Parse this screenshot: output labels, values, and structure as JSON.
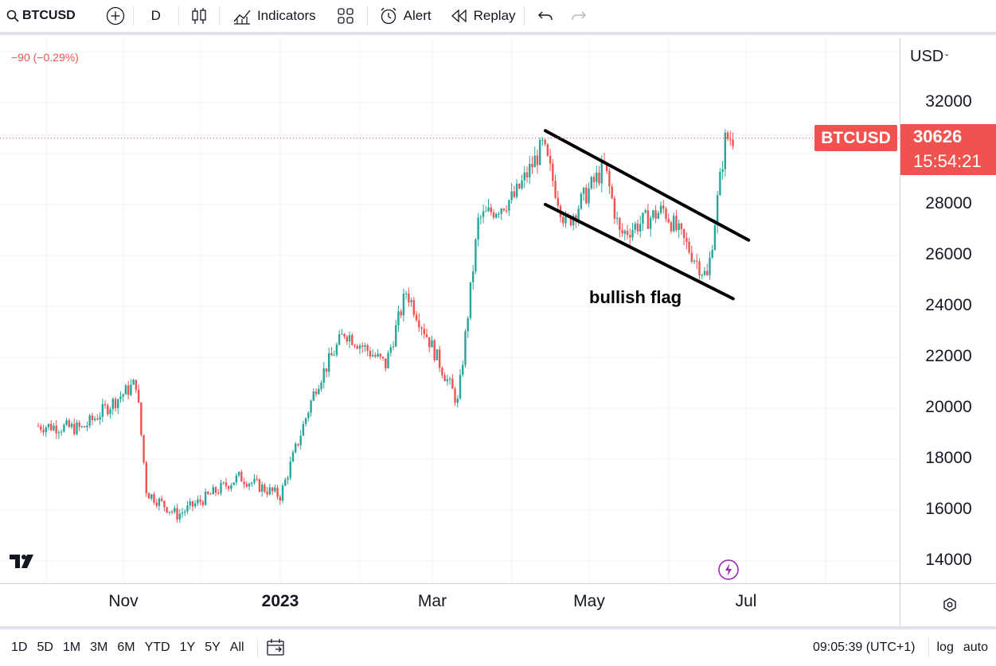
{
  "toolbar": {
    "symbol": "BTCUSD",
    "interval": "D",
    "indicators_label": "Indicators",
    "alert_label": "Alert",
    "replay_label": "Replay",
    "icons": [
      "search-icon",
      "add-symbol-icon",
      "candles-icon",
      "indicators-icon",
      "layout-icon",
      "alert-icon",
      "replay-icon",
      "undo-icon",
      "redo-icon"
    ]
  },
  "chart": {
    "change_text": "−90 (−0.29%)",
    "annotation": "bullish flag",
    "symbol_tag": "BTCUSD",
    "last_price": "30626",
    "countdown": "15:54:21",
    "currency": "USD",
    "colors": {
      "up": "#26a69a",
      "down": "#ef5350",
      "accent": "#ef5350"
    }
  },
  "price_axis": {
    "ticks": [
      "32000",
      "28000",
      "26000",
      "24000",
      "22000",
      "20000",
      "18000",
      "16000",
      "14000"
    ]
  },
  "time_axis": {
    "ticks": [
      "Nov",
      "2023",
      "Mar",
      "May",
      "Jul"
    ]
  },
  "bottom_bar": {
    "ranges": [
      "1D",
      "5D",
      "1M",
      "3M",
      "6M",
      "YTD",
      "1Y",
      "5Y",
      "All"
    ],
    "clock": "09:05:39 (UTC+1)",
    "log_label": "log",
    "auto_label": "auto"
  },
  "chart_data": {
    "type": "candlestick",
    "symbol": "BTCUSD",
    "interval": "D",
    "y_axis_ticks": [
      14000,
      16000,
      18000,
      20000,
      22000,
      24000,
      26000,
      28000,
      32000
    ],
    "x_axis_ticks": [
      "Nov",
      "2023",
      "Mar",
      "May",
      "Jul"
    ],
    "last_price": 30626,
    "approx_closes": [
      {
        "date": "2022-10-01",
        "close": 19300
      },
      {
        "date": "2022-10-15",
        "close": 19200
      },
      {
        "date": "2022-11-05",
        "close": 21000
      },
      {
        "date": "2022-11-09",
        "close": 16700
      },
      {
        "date": "2022-11-21",
        "close": 15800
      },
      {
        "date": "2022-12-15",
        "close": 17300
      },
      {
        "date": "2022-12-31",
        "close": 16550
      },
      {
        "date": "2023-01-14",
        "close": 20900
      },
      {
        "date": "2023-01-25",
        "close": 23000
      },
      {
        "date": "2023-02-10",
        "close": 21700
      },
      {
        "date": "2023-02-18",
        "close": 24600
      },
      {
        "date": "2023-03-10",
        "close": 20200
      },
      {
        "date": "2023-03-18",
        "close": 27400
      },
      {
        "date": "2023-04-01",
        "close": 28300
      },
      {
        "date": "2023-04-12",
        "close": 30300
      },
      {
        "date": "2023-04-21",
        "close": 27200
      },
      {
        "date": "2023-05-06",
        "close": 29500
      },
      {
        "date": "2023-05-12",
        "close": 26800
      },
      {
        "date": "2023-05-29",
        "close": 27800
      },
      {
        "date": "2023-06-15",
        "close": 25100
      },
      {
        "date": "2023-06-22",
        "close": 30600
      },
      {
        "date": "2023-06-25",
        "close": 30626
      }
    ],
    "trendlines": [
      {
        "name": "upper",
        "from": {
          "date": "2023-04-13",
          "price": 30900
        },
        "to": {
          "date": "2023-07-01",
          "price": 26600
        }
      },
      {
        "name": "lower",
        "from": {
          "date": "2023-04-13",
          "price": 28000
        },
        "to": {
          "date": "2023-06-25",
          "price": 24300
        }
      }
    ],
    "annotations": [
      "bullish flag"
    ]
  }
}
